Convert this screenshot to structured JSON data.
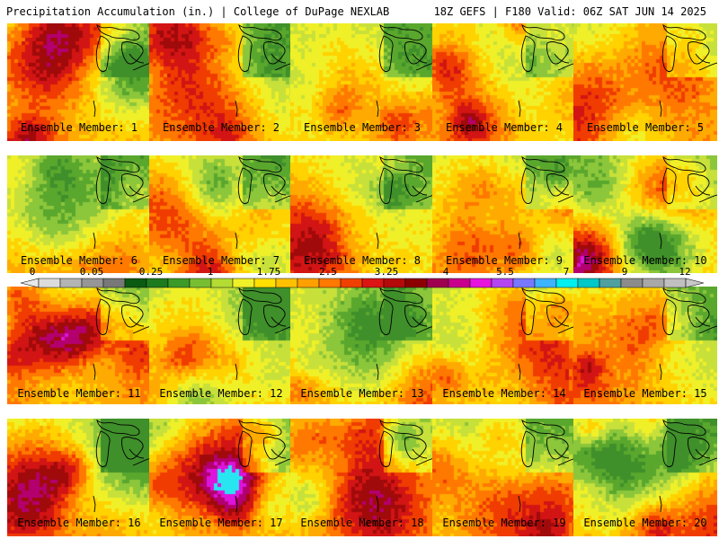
{
  "header": {
    "title": "Precipitation Accumulation (in.) | College of DuPage NEXLAB",
    "run_info": "18Z GEFS | F180 Valid: 06Z SAT JUN 14 2025"
  },
  "panels": [
    {
      "label": "Ensemble Member: 1"
    },
    {
      "label": "Ensemble Member: 2"
    },
    {
      "label": "Ensemble Member: 3"
    },
    {
      "label": "Ensemble Member: 4"
    },
    {
      "label": "Ensemble Member: 5"
    },
    {
      "label": "Ensemble Member: 6"
    },
    {
      "label": "Ensemble Member: 7"
    },
    {
      "label": "Ensemble Member: 8"
    },
    {
      "label": "Ensemble Member: 9"
    },
    {
      "label": "Ensemble Member: 10"
    },
    {
      "label": "Ensemble Member: 11"
    },
    {
      "label": "Ensemble Member: 12"
    },
    {
      "label": "Ensemble Member: 13"
    },
    {
      "label": "Ensemble Member: 14"
    },
    {
      "label": "Ensemble Member: 15"
    },
    {
      "label": "Ensemble Member: 16"
    },
    {
      "label": "Ensemble Member: 17"
    },
    {
      "label": "Ensemble Member: 18"
    },
    {
      "label": "Ensemble Member: 19"
    },
    {
      "label": "Ensemble Member: 20"
    }
  ],
  "colorbar": {
    "ticks": [
      "0",
      "0.05",
      "0.25",
      "1",
      "1.75",
      "2.5",
      "3.25",
      "4",
      "5.5",
      "7",
      "9",
      "12"
    ],
    "colors": [
      "#dcdcdc",
      "#b4b4b4",
      "#969696",
      "#787878",
      "#0a5a12",
      "#1e7a1e",
      "#3c9a28",
      "#78be32",
      "#b4dc32",
      "#f0f028",
      "#ffe000",
      "#ffc000",
      "#ffa000",
      "#ff7800",
      "#f04000",
      "#dc1414",
      "#b40a0a",
      "#8c0000",
      "#a00050",
      "#c8008c",
      "#e614dc",
      "#b446f0",
      "#7878ff",
      "#3cb4ff",
      "#00f0f0",
      "#00c8c8",
      "#50a0a0",
      "#8c8c8c",
      "#a8a8a8",
      "#c0c0c0"
    ]
  }
}
